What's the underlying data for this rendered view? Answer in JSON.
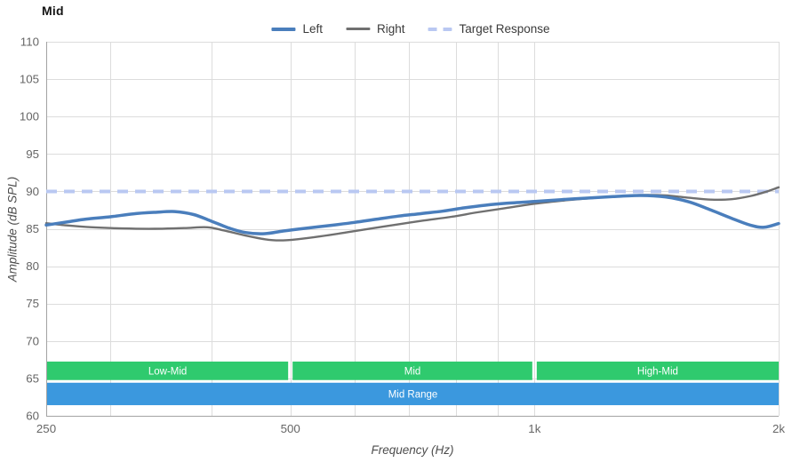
{
  "chart_data": {
    "type": "line",
    "title": "Mid",
    "xlabel": "Frequency (Hz)",
    "ylabel": "Amplitude (dB SPL)",
    "x_scale": "log",
    "xlim": [
      250,
      2000
    ],
    "ylim": [
      60,
      110
    ],
    "y_ticks": [
      110,
      105,
      100,
      95,
      90,
      85,
      80,
      75,
      70,
      65,
      60
    ],
    "x_ticks": [
      {
        "value": 250,
        "label": "250"
      },
      {
        "value": 500,
        "label": "500"
      },
      {
        "value": 1000,
        "label": "1k"
      },
      {
        "value": 2000,
        "label": "2k"
      }
    ],
    "x_gridlines": [
      300,
      400,
      500,
      600,
      700,
      800,
      900,
      1000,
      2000
    ],
    "grid": true,
    "legend_position": "top-center",
    "series": [
      {
        "name": "Left",
        "color": "#4a7ebc",
        "stroke_width": 3.5,
        "points": [
          [
            250,
            85.5
          ],
          [
            265,
            85.9
          ],
          [
            280,
            86.3
          ],
          [
            300,
            86.6
          ],
          [
            320,
            87.0
          ],
          [
            340,
            87.2
          ],
          [
            360,
            87.3
          ],
          [
            380,
            86.9
          ],
          [
            400,
            86.0
          ],
          [
            420,
            85.1
          ],
          [
            440,
            84.5
          ],
          [
            465,
            84.35
          ],
          [
            490,
            84.7
          ],
          [
            520,
            85.05
          ],
          [
            560,
            85.45
          ],
          [
            600,
            85.85
          ],
          [
            640,
            86.3
          ],
          [
            680,
            86.7
          ],
          [
            720,
            87.0
          ],
          [
            770,
            87.35
          ],
          [
            820,
            87.8
          ],
          [
            870,
            88.15
          ],
          [
            920,
            88.4
          ],
          [
            1000,
            88.65
          ],
          [
            1080,
            88.9
          ],
          [
            1160,
            89.1
          ],
          [
            1250,
            89.3
          ],
          [
            1350,
            89.45
          ],
          [
            1450,
            89.25
          ],
          [
            1550,
            88.6
          ],
          [
            1650,
            87.5
          ],
          [
            1750,
            86.4
          ],
          [
            1850,
            85.45
          ],
          [
            1920,
            85.2
          ],
          [
            2000,
            85.7
          ]
        ]
      },
      {
        "name": "Right",
        "color": "#707070",
        "stroke_width": 2.4,
        "points": [
          [
            250,
            85.75
          ],
          [
            265,
            85.45
          ],
          [
            285,
            85.2
          ],
          [
            310,
            85.05
          ],
          [
            340,
            85.0
          ],
          [
            370,
            85.1
          ],
          [
            395,
            85.2
          ],
          [
            415,
            84.75
          ],
          [
            440,
            84.1
          ],
          [
            465,
            83.6
          ],
          [
            485,
            83.45
          ],
          [
            510,
            83.6
          ],
          [
            545,
            84.0
          ],
          [
            585,
            84.5
          ],
          [
            630,
            85.05
          ],
          [
            680,
            85.6
          ],
          [
            730,
            86.1
          ],
          [
            790,
            86.6
          ],
          [
            850,
            87.2
          ],
          [
            920,
            87.75
          ],
          [
            1000,
            88.35
          ],
          [
            1080,
            88.75
          ],
          [
            1160,
            89.05
          ],
          [
            1250,
            89.3
          ],
          [
            1350,
            89.5
          ],
          [
            1450,
            89.45
          ],
          [
            1550,
            89.15
          ],
          [
            1650,
            88.9
          ],
          [
            1750,
            88.95
          ],
          [
            1850,
            89.4
          ],
          [
            1930,
            89.95
          ],
          [
            2000,
            90.55
          ]
        ]
      }
    ],
    "target": {
      "name": "Target Response",
      "value": 90,
      "color": "#b9c8f2",
      "stroke_width": 4,
      "dash": [
        12,
        8
      ]
    },
    "legend": [
      {
        "label": "Left",
        "color": "#4a7ebc",
        "style": "solid",
        "thickness": 4
      },
      {
        "label": "Right",
        "color": "#707070",
        "style": "solid",
        "thickness": 2.5
      },
      {
        "label": "Target Response",
        "color": "#b9c8f2",
        "style": "dashed",
        "thickness": 4
      }
    ],
    "bands": {
      "rows": {
        "upper": [
          64.78,
          67.25
        ],
        "lower": [
          61.42,
          64.42
        ]
      },
      "items": [
        {
          "label": "Low-Mid",
          "from": 250,
          "to": 500,
          "row": "upper",
          "color": "#2fca6e",
          "text_color": "#ffffff"
        },
        {
          "label": "Mid",
          "from": 500,
          "to": 1000,
          "row": "upper",
          "color": "#2fca6e",
          "text_color": "#ffffff"
        },
        {
          "label": "High-Mid",
          "from": 1000,
          "to": 2000,
          "row": "upper",
          "color": "#2fca6e",
          "text_color": "#ffffff"
        },
        {
          "label": "Mid Range",
          "from": 250,
          "to": 2000,
          "row": "lower",
          "color": "#3b98de",
          "text_color": "#ffffff"
        }
      ]
    },
    "style": {
      "grid_color": "#dcdcdc",
      "axis_color": "#a3a3a3",
      "tick_label_color": "#666666",
      "axis_title_color": "#4d4d4d",
      "title_color": "#141414",
      "legend_text_color": "#3a3a3a",
      "band_label_font_size": 11.5,
      "tick_label_font_size": 13.3,
      "background": "#ffffff"
    }
  }
}
